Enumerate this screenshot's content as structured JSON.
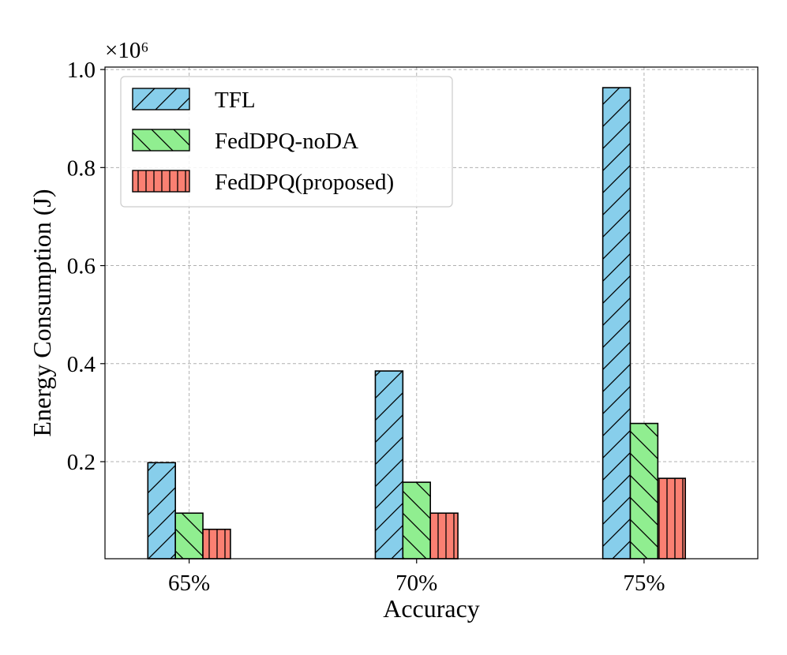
{
  "chart_data": {
    "type": "bar",
    "title": "",
    "xlabel": "Accuracy",
    "ylabel": "Energy Consumption (J)",
    "y_multiplier": "×10⁶",
    "categories": [
      "65%",
      "70%",
      "75%"
    ],
    "ylim": [
      0,
      1.0
    ],
    "ylim_display": [
      0.002,
      1.005
    ],
    "yticks": [
      0.2,
      0.4,
      0.6,
      0.8,
      1.0
    ],
    "ytick_labels": [
      "0.2",
      "0.4",
      "0.6",
      "0.8",
      "1.0"
    ],
    "grid": true,
    "legend_position": "top-left",
    "series": [
      {
        "name": "TFL",
        "values": [
          0.198,
          0.385,
          0.963
        ],
        "color": "#87ceeb",
        "hatch": "forward-diagonal"
      },
      {
        "name": "FedDPQ-noDA",
        "values": [
          0.095,
          0.158,
          0.278
        ],
        "color": "#90ee90",
        "hatch": "back-diagonal"
      },
      {
        "name": "FedDPQ(proposed)",
        "values": [
          0.062,
          0.095,
          0.166
        ],
        "color": "#fa8072",
        "hatch": "vertical"
      }
    ]
  }
}
